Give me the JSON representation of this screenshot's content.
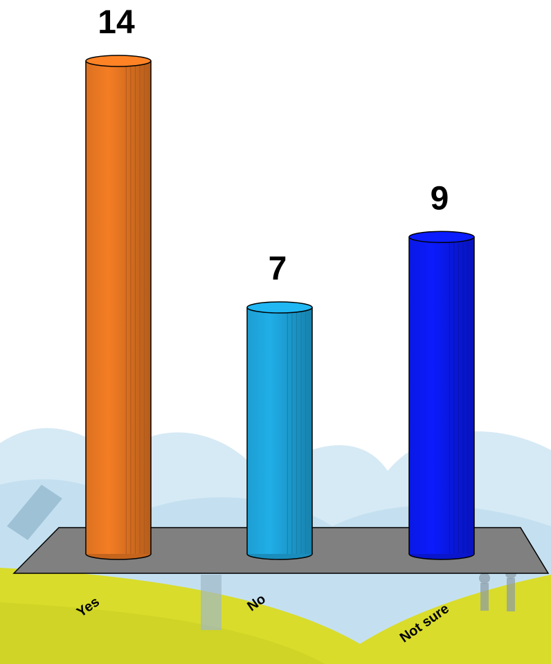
{
  "chart_data": {
    "type": "cylinder-bar",
    "categories": [
      "Yes",
      "No",
      "Not sure"
    ],
    "values": [
      14,
      7,
      9
    ],
    "colors": [
      "#e87722",
      "#1ea6dd",
      "#0a1af0"
    ]
  }
}
